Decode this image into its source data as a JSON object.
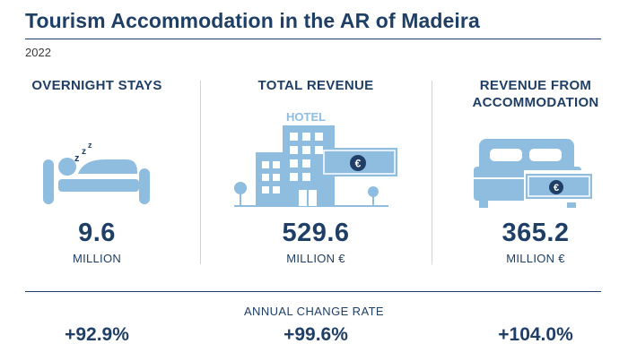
{
  "header": {
    "title": "Tourism Accommodation in the AR of Madeira",
    "year": "2022"
  },
  "colors": {
    "navy": "#1f3f66",
    "icon_blue": "#8fbde0",
    "divider_gold": "#f3d27a"
  },
  "metrics": [
    {
      "label": "OVERNIGHT STAYS",
      "value": "9.6",
      "unit": "MILLION",
      "icon": "sleeping-person-icon",
      "change": "+92.9%"
    },
    {
      "label": "TOTAL REVENUE",
      "value": "529.6",
      "unit": "MILLION €",
      "icon": "hotel-building-icon",
      "icon_text": "HOTEL",
      "change": "+99.6%"
    },
    {
      "label": "REVENUE FROM ACCOMMODATION",
      "label_lines": [
        "REVENUE FROM",
        "ACCOMMODATION"
      ],
      "value": "365.2",
      "unit": "MILLION €",
      "icon": "bed-with-banknote-icon",
      "change": "+104.0%"
    }
  ],
  "footer": {
    "change_label": "ANNUAL CHANGE RATE"
  }
}
